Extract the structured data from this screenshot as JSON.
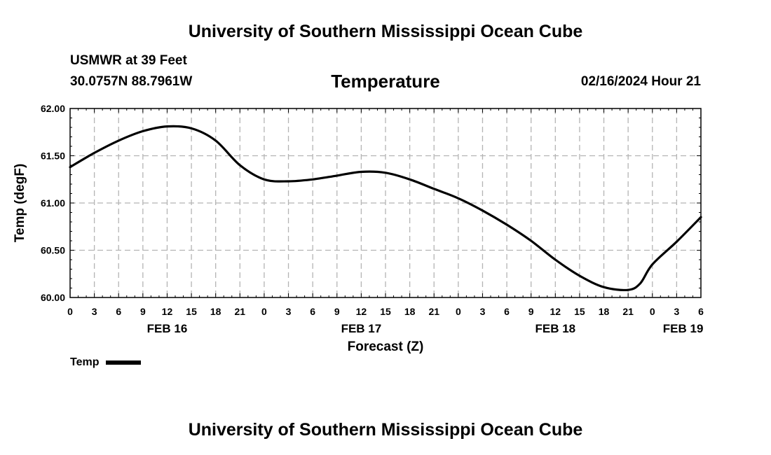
{
  "header": {
    "title": "University of Southern Mississippi Ocean Cube",
    "station": "USMWR at 39 Feet",
    "coords": "30.0757N  88.7961W",
    "variable": "Temperature",
    "datetime": "02/16/2024 Hour 21"
  },
  "footer": {
    "title": "University of Southern Mississippi Ocean Cube"
  },
  "legend": {
    "label": "Temp",
    "color": "#000000"
  },
  "chart_data": {
    "type": "line",
    "title": "Temperature",
    "xlabel": "Forecast (Z)",
    "ylabel": "Temp (degF)",
    "ylim": [
      60.0,
      62.0
    ],
    "xlim": [
      0,
      78
    ],
    "x_unit": "hours from FEB 16 00Z",
    "yticks": [
      60.0,
      60.5,
      61.0,
      61.5,
      62.0
    ],
    "ytick_labels": [
      "60.00",
      "60.50",
      "61.00",
      "61.50",
      "62.00"
    ],
    "xtick_hours": [
      0,
      3,
      6,
      9,
      12,
      15,
      18,
      21,
      24,
      27,
      30,
      33,
      36,
      39,
      42,
      45,
      48,
      51,
      54,
      57,
      60,
      63,
      66,
      69,
      72,
      75,
      78
    ],
    "xtick_labels": [
      "0",
      "3",
      "6",
      "9",
      "12",
      "15",
      "18",
      "21",
      "0",
      "3",
      "6",
      "9",
      "12",
      "15",
      "18",
      "21",
      "0",
      "3",
      "6",
      "9",
      "12",
      "15",
      "18",
      "21",
      "0",
      "3",
      "6"
    ],
    "date_labels": [
      {
        "label": "FEB 16",
        "hour": 12
      },
      {
        "label": "FEB 17",
        "hour": 36
      },
      {
        "label": "FEB 18",
        "hour": 60
      },
      {
        "label": "FEB 19",
        "hour": 75.8
      }
    ],
    "grid": true,
    "series": [
      {
        "name": "Temp",
        "color": "#000000",
        "x": [
          0,
          3,
          6,
          9,
          12,
          15,
          18,
          21,
          24,
          27,
          30,
          33,
          36,
          39,
          42,
          45,
          48,
          51,
          54,
          57,
          60,
          63,
          66,
          69,
          70.5,
          72,
          75,
          78
        ],
        "values": [
          61.38,
          61.53,
          61.66,
          61.76,
          61.81,
          61.79,
          61.66,
          61.4,
          61.25,
          61.23,
          61.25,
          61.29,
          61.33,
          61.32,
          61.25,
          61.15,
          61.05,
          60.92,
          60.77,
          60.6,
          60.4,
          60.23,
          60.11,
          60.08,
          60.15,
          60.35,
          60.59,
          60.85
        ]
      }
    ]
  }
}
